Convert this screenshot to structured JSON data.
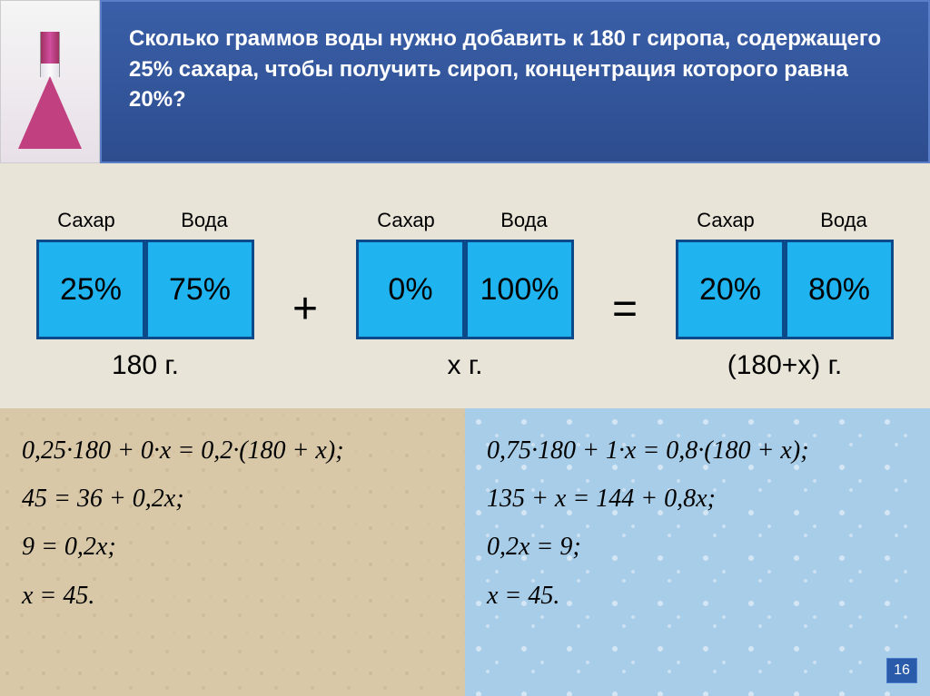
{
  "header": {
    "text": "Сколько граммов воды нужно добавить к 180 г сиропа, содержащего 25% сахара, чтобы получить сироп, концентрация которого равна 20%?",
    "bg_color": "#2d4d8f",
    "text_color": "#ffffff",
    "fontsize": 24
  },
  "mixing": {
    "label_sugar": "Сахар",
    "label_water": "Вода",
    "groups": [
      {
        "sugar_pct": "25%",
        "water_pct": "75%",
        "mass": "180 г."
      },
      {
        "sugar_pct": "0%",
        "water_pct": "100%",
        "mass": "х г."
      },
      {
        "sugar_pct": "20%",
        "water_pct": "80%",
        "mass": "(180+х) г."
      }
    ],
    "op_plus": "+",
    "op_eq": "=",
    "box_bg": "#1fb4f0",
    "box_border": "#0a4a8a",
    "box_fontsize": 34,
    "label_fontsize": 22,
    "mass_fontsize": 30
  },
  "equations": {
    "left": [
      "0,25·180 + 0·x = 0,2·(180 + x);",
      "45 = 36 + 0,2x;",
      "9 = 0,2x;",
      "x = 45."
    ],
    "right": [
      "0,75·180 + 1·x = 0,8·(180 + x);",
      "135 + x = 144 + 0,8x;",
      "0,2x = 9;",
      "x = 45."
    ],
    "left_bg": "#d8c8a8",
    "right_bg": "#a8cde8",
    "fontsize": 28
  },
  "page_number": "16",
  "flask": {
    "liquid_color": "#c04080",
    "glass_color": "#e8e0e8"
  }
}
